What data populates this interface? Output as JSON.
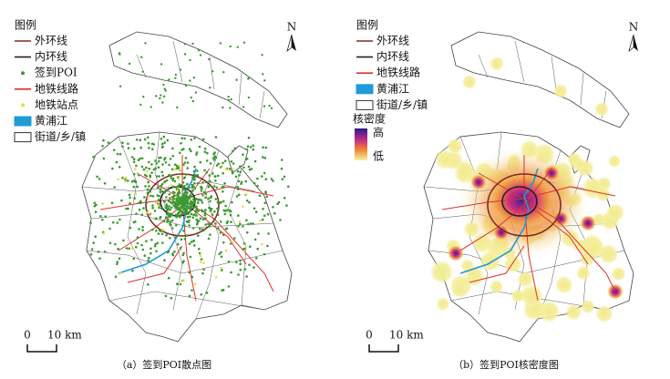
{
  "panels": [
    {
      "legend": {
        "title": "图例",
        "items": [
          "外环线",
          "内环线",
          "签到POI",
          "地铁线路",
          "地铁站点",
          "黄浦江",
          "街道/乡/镇"
        ]
      },
      "north": "N",
      "scale": {
        "start": "0",
        "end": "10 km"
      },
      "caption": "（a）签到POI散点图"
    },
    {
      "legend": {
        "title": "图例",
        "items": [
          "外环线",
          "内环线",
          "地铁线路",
          "黄浦江",
          "街道/乡/镇"
        ]
      },
      "density": {
        "title": "核密度",
        "high": "高",
        "low": "低"
      },
      "north": "N",
      "scale": {
        "start": "0",
        "end": "10 km"
      },
      "caption": "（b）签到POI核密度图"
    }
  ]
}
